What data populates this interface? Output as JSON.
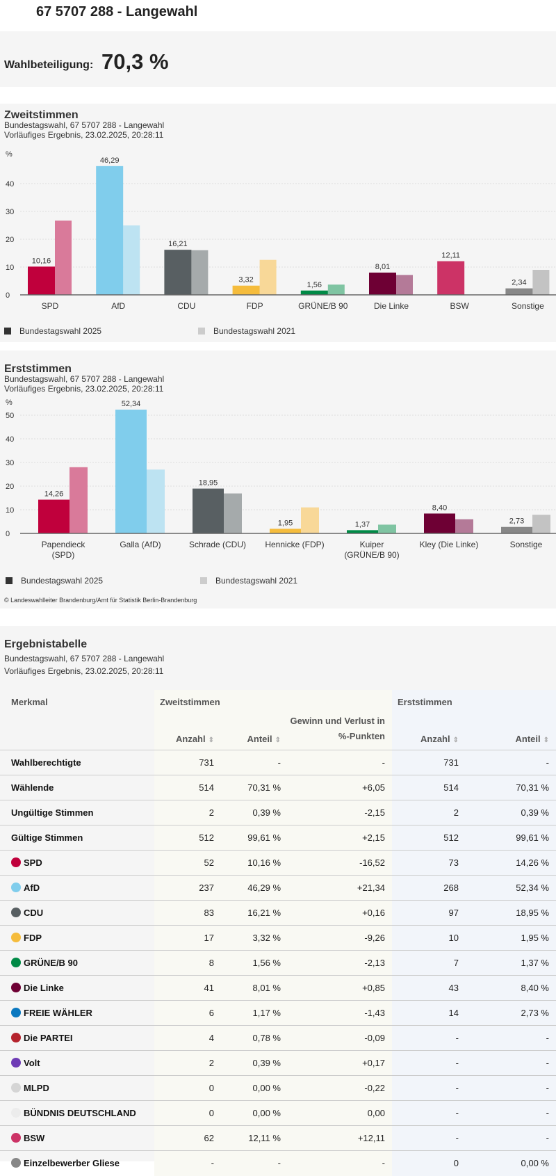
{
  "header": {
    "title": "67 5707 288 - Langewahl"
  },
  "turnout": {
    "label": "Wahlbeteiligung:",
    "value": "70,3 %"
  },
  "charts": [
    {
      "title": "Zweitstimmen",
      "subtitle": "Bundestagswahl, 67 5707 288 - Langewahl",
      "status": "Vorläufiges Ergebnis, 23.02.2025, 20:28:11",
      "unit": "%",
      "legend": [
        "Bundestagswahl 2025",
        "Bundestagswahl 2021"
      ]
    },
    {
      "title": "Erststimmen",
      "subtitle": "Bundestagswahl, 67 5707 288 - Langewahl",
      "status": "Vorläufiges Ergebnis, 23.02.2025, 20:28:11",
      "unit": "%",
      "legend": [
        "Bundestagswahl 2025",
        "Bundestagswahl 2021"
      ],
      "copyright": "© Landeswahlleiter Brandenburg/Amt für Statistik Berlin-Brandenburg"
    }
  ],
  "chart_data": [
    {
      "type": "bar",
      "title": "Zweitstimmen",
      "ylabel": "%",
      "ylim": [
        0,
        45
      ],
      "yticks": [
        0,
        10,
        20,
        30,
        40
      ],
      "grid": true,
      "legend_position": "bottom",
      "categories": [
        "SPD",
        "AfD",
        "CDU",
        "FDP",
        "GRÜNE/B 90",
        "Die Linke",
        "BSW",
        "Sonstige"
      ],
      "series": [
        {
          "name": "Bundestagswahl 2025",
          "values": [
            10.16,
            46.29,
            16.21,
            3.32,
            1.56,
            8.01,
            12.11,
            2.34
          ],
          "labels": [
            "10,16",
            "46,29",
            "16,21",
            "3,32",
            "1,56",
            "8,01",
            "12,11",
            "2,34"
          ],
          "colors": [
            "#c0003c",
            "#80cdec",
            "#585f62",
            "#f5bc3c",
            "#008a46",
            "#6e0034",
            "#cc3366",
            "#878787"
          ]
        },
        {
          "name": "Bundestagswahl 2021",
          "values": [
            26.68,
            24.95,
            16.05,
            12.58,
            3.69,
            7.16,
            null,
            9.0
          ],
          "colors": [
            "#d97a9a",
            "#bde3f2",
            "#a5aaab",
            "#f8d898",
            "#7fc4a2",
            "#b47a98",
            "#e699b3",
            "#c3c3c3"
          ]
        }
      ]
    },
    {
      "type": "bar",
      "title": "Erststimmen",
      "ylabel": "%",
      "ylim": [
        0,
        55
      ],
      "yticks": [
        0,
        10,
        20,
        30,
        40,
        50
      ],
      "grid": true,
      "legend_position": "bottom",
      "categories": [
        [
          "Papendieck",
          "(SPD)"
        ],
        [
          "Galla (AfD)"
        ],
        [
          "Schrade (CDU)"
        ],
        [
          "Hennicke (FDP)"
        ],
        [
          "Kuiper",
          "(GRÜNE/B 90)"
        ],
        [
          "Kley (Die Linke)"
        ],
        [
          "Sonstige"
        ]
      ],
      "series": [
        {
          "name": "Bundestagswahl 2025",
          "values": [
            14.26,
            52.34,
            18.95,
            1.95,
            1.37,
            8.4,
            2.73
          ],
          "labels": [
            "14,26",
            "52,34",
            "18,95",
            "1,95",
            "1,37",
            "8,40",
            "2,73"
          ],
          "colors": [
            "#c0003c",
            "#80cdec",
            "#585f62",
            "#f5bc3c",
            "#008a46",
            "#6e0034",
            "#878787"
          ]
        },
        {
          "name": "Bundestagswahl 2021",
          "values": [
            28.0,
            27.0,
            16.9,
            11.0,
            3.7,
            6.0,
            7.9
          ],
          "colors": [
            "#d97a9a",
            "#bde3f2",
            "#a5aaab",
            "#f8d898",
            "#7fc4a2",
            "#b47a98",
            "#c3c3c3"
          ]
        }
      ]
    }
  ],
  "table": {
    "title": "Ergebnistabelle",
    "subtitle": "Bundestagswahl, 67 5707 288 - Langewahl",
    "status": "Vorläufiges Ergebnis, 23.02.2025, 20:28:11",
    "group_headers": {
      "merkmal": "Merkmal",
      "zweit": "Zweitstimmen",
      "erst": "Erststimmen"
    },
    "columns": [
      "Anzahl",
      "Anteil",
      "Gewinn und Verlust in %-Punkten",
      "Anzahl",
      "Anteil"
    ],
    "rows": [
      {
        "name": "Wahlberechtigte",
        "color": null,
        "cells": [
          "731",
          "-",
          "-",
          "731",
          "-"
        ]
      },
      {
        "name": "Wählende",
        "color": null,
        "cells": [
          "514",
          "70,31 %",
          "+6,05",
          "514",
          "70,31 %"
        ]
      },
      {
        "name": "Ungültige Stimmen",
        "color": null,
        "cells": [
          "2",
          "0,39 %",
          "-2,15",
          "2",
          "0,39 %"
        ]
      },
      {
        "name": "Gültige Stimmen",
        "color": null,
        "cells": [
          "512",
          "99,61 %",
          "+2,15",
          "512",
          "99,61 %"
        ]
      },
      {
        "name": "SPD",
        "color": "#c0003c",
        "cells": [
          "52",
          "10,16 %",
          "-16,52",
          "73",
          "14,26 %"
        ]
      },
      {
        "name": "AfD",
        "color": "#80cdec",
        "cells": [
          "237",
          "46,29 %",
          "+21,34",
          "268",
          "52,34 %"
        ]
      },
      {
        "name": "CDU",
        "color": "#585f62",
        "cells": [
          "83",
          "16,21 %",
          "+0,16",
          "97",
          "18,95 %"
        ]
      },
      {
        "name": "FDP",
        "color": "#f5bc3c",
        "cells": [
          "17",
          "3,32 %",
          "-9,26",
          "10",
          "1,95 %"
        ]
      },
      {
        "name": "GRÜNE/B 90",
        "color": "#008a46",
        "cells": [
          "8",
          "1,56 %",
          "-2,13",
          "7",
          "1,37 %"
        ]
      },
      {
        "name": "Die Linke",
        "color": "#6e0034",
        "cells": [
          "41",
          "8,01 %",
          "+0,85",
          "43",
          "8,40 %"
        ]
      },
      {
        "name": "FREIE WÄHLER",
        "color": "#0a78c0",
        "cells": [
          "6",
          "1,17 %",
          "-1,43",
          "14",
          "2,73 %"
        ]
      },
      {
        "name": "Die PARTEI",
        "color": "#b5232d",
        "cells": [
          "4",
          "0,78 %",
          "-0,09",
          "-",
          "-"
        ]
      },
      {
        "name": "Volt",
        "color": "#6e3bb5",
        "cells": [
          "2",
          "0,39 %",
          "+0,17",
          "-",
          "-"
        ]
      },
      {
        "name": "MLPD",
        "color": "#d5d5d5",
        "cells": [
          "0",
          "0,00 %",
          "-0,22",
          "-",
          "-"
        ]
      },
      {
        "name": "BÜNDNIS DEUTSCHLAND",
        "color": "#ececec",
        "cells": [
          "0",
          "0,00 %",
          "0,00",
          "-",
          "-"
        ]
      },
      {
        "name": "BSW",
        "color": "#cc3366",
        "cells": [
          "62",
          "12,11 %",
          "+12,11",
          "-",
          "-"
        ]
      },
      {
        "name": "Einzelbewerber Gliese",
        "color": "#878787",
        "cells": [
          "-",
          "-",
          "-",
          "0",
          "0,00 %"
        ]
      }
    ]
  }
}
